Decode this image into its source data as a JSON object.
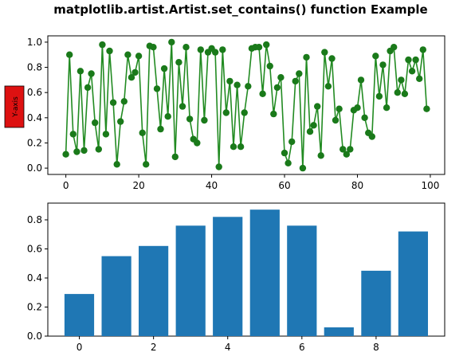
{
  "figure": {
    "title": "matplotlib.artist.Artist.set_contains() function Example"
  },
  "chart_data": [
    {
      "type": "line",
      "markers": "circle",
      "color": "#228B22",
      "marker_color": "#1a7a1a",
      "xlim": [
        -4.95,
        103.95
      ],
      "ylim": [
        -0.05,
        1.05
      ],
      "xticks": [
        0,
        20,
        40,
        60,
        80,
        100
      ],
      "xtick_labels": [
        "0",
        "20",
        "40",
        "60",
        "80",
        "100"
      ],
      "yticks": [
        0.0,
        0.2,
        0.4,
        0.6,
        0.8,
        1.0
      ],
      "ytick_labels": [
        "0.0",
        "0.2",
        "0.4",
        "0.6",
        "0.8",
        "1.0"
      ],
      "ylabel": "Y-axis",
      "ylabel_box_color": "#dd1111",
      "grid": false,
      "x": [
        0,
        1,
        2,
        3,
        4,
        5,
        6,
        7,
        8,
        9,
        10,
        11,
        12,
        13,
        14,
        15,
        16,
        17,
        18,
        19,
        20,
        21,
        22,
        23,
        24,
        25,
        26,
        27,
        28,
        29,
        30,
        31,
        32,
        33,
        34,
        35,
        36,
        37,
        38,
        39,
        40,
        41,
        42,
        43,
        44,
        45,
        46,
        47,
        48,
        49,
        50,
        51,
        52,
        53,
        54,
        55,
        56,
        57,
        58,
        59,
        60,
        61,
        62,
        63,
        64,
        65,
        66,
        67,
        68,
        69,
        70,
        71,
        72,
        73,
        74,
        75,
        76,
        77,
        78,
        79,
        80,
        81,
        82,
        83,
        84,
        85,
        86,
        87,
        88,
        89,
        90,
        91,
        92,
        93,
        94,
        95,
        96,
        97,
        98,
        99
      ],
      "y": [
        0.11,
        0.9,
        0.27,
        0.13,
        0.77,
        0.14,
        0.64,
        0.75,
        0.36,
        0.15,
        0.98,
        0.27,
        0.93,
        0.52,
        0.03,
        0.37,
        0.53,
        0.9,
        0.72,
        0.76,
        0.89,
        0.28,
        0.03,
        0.97,
        0.96,
        0.63,
        0.31,
        0.79,
        0.41,
        1.0,
        0.09,
        0.84,
        0.49,
        0.96,
        0.39,
        0.23,
        0.2,
        0.94,
        0.38,
        0.92,
        0.95,
        0.92,
        0.01,
        0.94,
        0.44,
        0.69,
        0.17,
        0.66,
        0.17,
        0.44,
        0.65,
        0.95,
        0.96,
        0.96,
        0.59,
        0.98,
        0.81,
        0.43,
        0.64,
        0.72,
        0.12,
        0.04,
        0.21,
        0.69,
        0.75,
        0.0,
        0.88,
        0.29,
        0.34,
        0.49,
        0.1,
        0.92,
        0.65,
        0.87,
        0.38,
        0.47,
        0.15,
        0.11,
        0.15,
        0.46,
        0.48,
        0.7,
        0.4,
        0.28,
        0.25,
        0.89,
        0.57,
        0.82,
        0.48,
        0.93,
        0.96,
        0.6,
        0.7,
        0.59,
        0.86,
        0.77,
        0.86,
        0.71,
        0.94,
        0.47
      ]
    },
    {
      "type": "bar",
      "color": "#1f77b4",
      "categories": [
        0,
        1,
        2,
        3,
        4,
        5,
        6,
        7,
        8,
        9
      ],
      "values": [
        0.29,
        0.55,
        0.62,
        0.76,
        0.82,
        0.87,
        0.76,
        0.06,
        0.45,
        0.72
      ],
      "xlim": [
        -0.85,
        9.85
      ],
      "ylim": [
        0.0,
        0.915
      ],
      "xticks": [
        0,
        2,
        4,
        6,
        8
      ],
      "xtick_labels": [
        "0",
        "2",
        "4",
        "6",
        "8"
      ],
      "yticks": [
        0.0,
        0.2,
        0.4,
        0.6,
        0.8
      ],
      "ytick_labels": [
        "0.0",
        "0.2",
        "0.4",
        "0.6",
        "0.8"
      ],
      "grid": false
    }
  ]
}
